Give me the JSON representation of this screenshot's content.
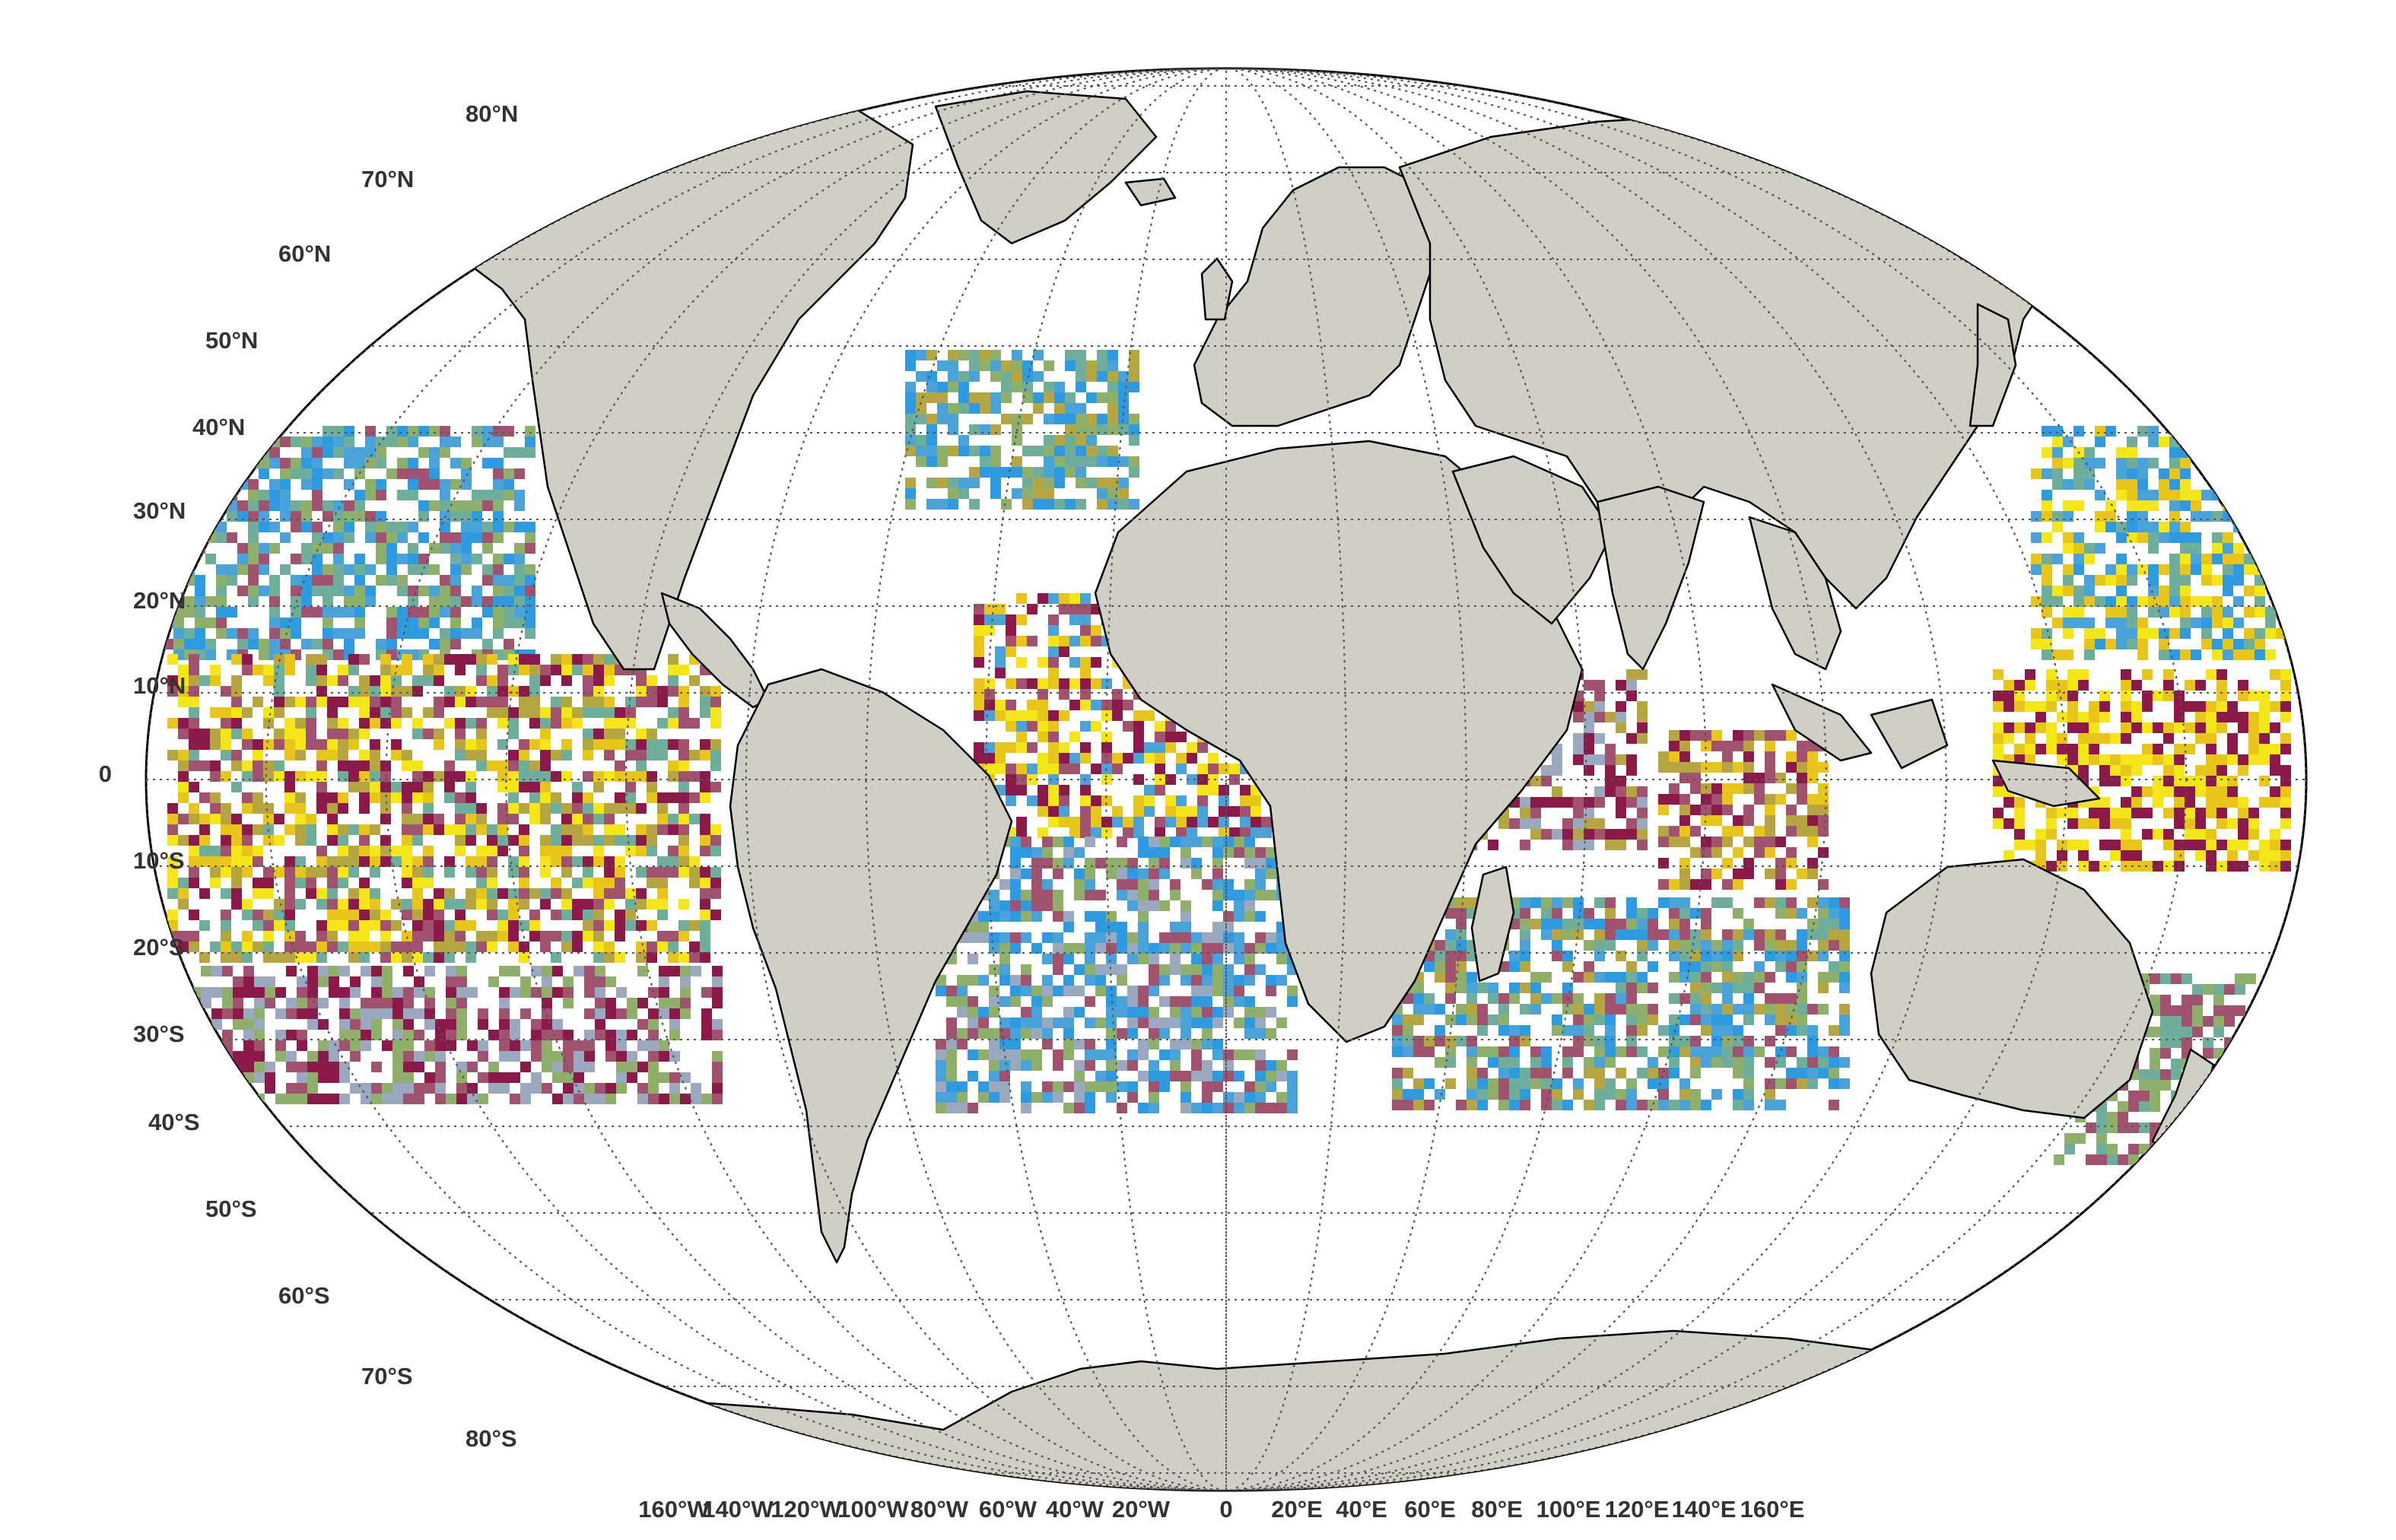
{
  "map": {
    "projection": "Robinson",
    "land_color": "#cfcfc5",
    "coast_color": "#000000",
    "frame_color": "#000000",
    "grid_color": "#555555",
    "grid_style": "dotted",
    "lat_labels": [
      "80°N",
      "70°N",
      "60°N",
      "50°N",
      "40°N",
      "30°N",
      "20°N",
      "10°N",
      "0",
      "10°S",
      "20°S",
      "30°S",
      "40°S",
      "50°S",
      "60°S",
      "70°S",
      "80°S"
    ],
    "lon_labels": [
      "160°W",
      "140°W",
      "120°W",
      "100°W",
      "80°W",
      "60°W",
      "40°W",
      "20°W",
      "0",
      "20°E",
      "40°E",
      "60°E",
      "80°E",
      "100°E",
      "120°E",
      "140°E",
      "160°E"
    ],
    "data_palette": [
      "#8b1a4a",
      "#a0526e",
      "#b5a642",
      "#e8c51a",
      "#f5e61a",
      "#8fb06a",
      "#6fae9a",
      "#4aa3d8",
      "#2e9be0",
      "#9aa8c0"
    ],
    "continents": [
      "North America",
      "Greenland",
      "South America",
      "Europe",
      "Africa",
      "Asia",
      "Arabian Peninsula",
      "India",
      "Southeast Asia",
      "Australia",
      "New Zealand",
      "Madagascar",
      "Antarctica",
      "Japan",
      "Iceland",
      "United Kingdom"
    ]
  }
}
